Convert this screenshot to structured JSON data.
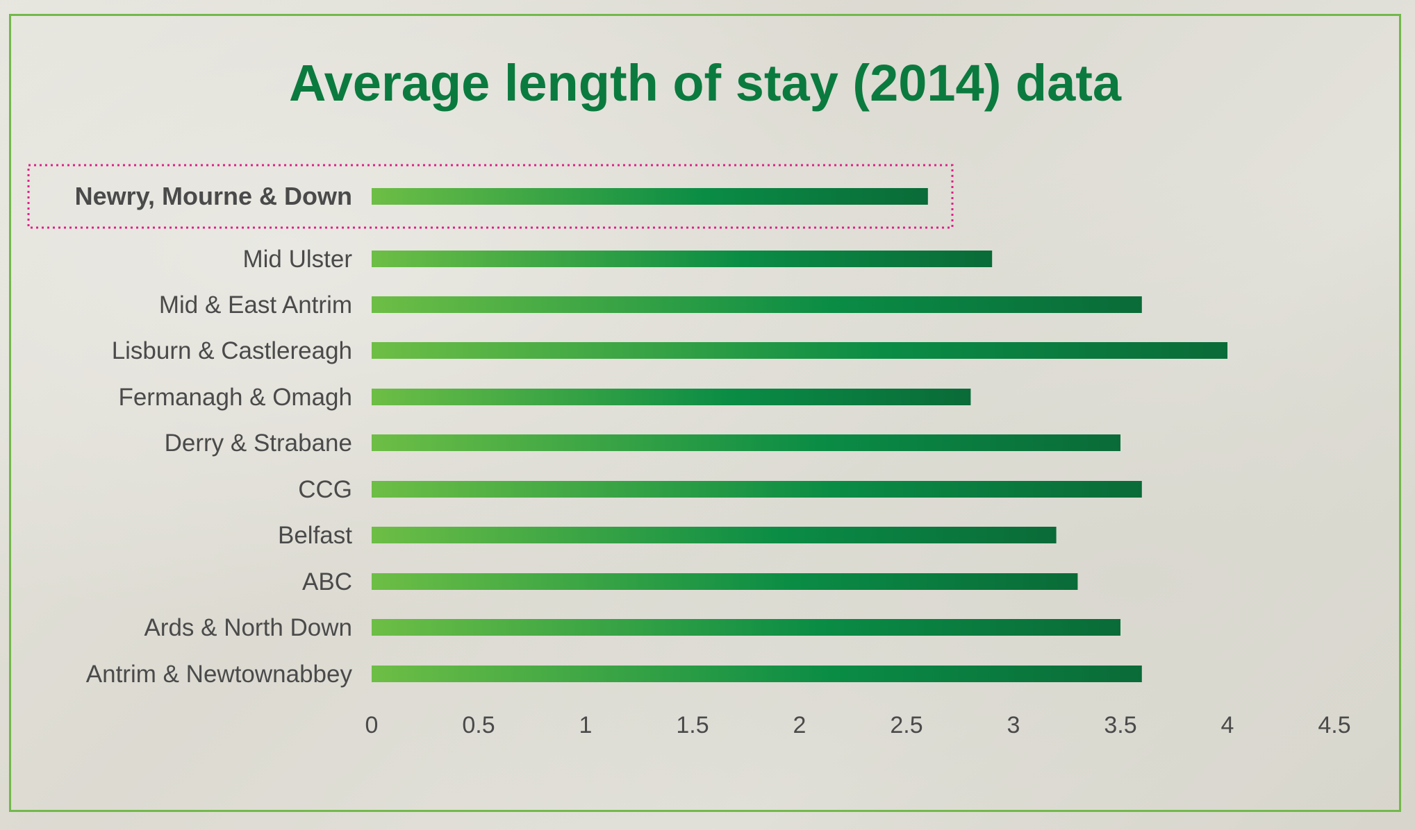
{
  "chart_data": {
    "type": "bar",
    "orientation": "horizontal",
    "title": "Average length of stay (2014) data",
    "categories": [
      "Newry, Mourne & Down",
      "Mid Ulster",
      "Mid & East Antrim",
      "Lisburn & Castlereagh",
      "Fermanagh & Omagh",
      "Derry & Strabane",
      "CCG",
      "Belfast",
      "ABC",
      "Ards & North Down",
      "Antrim & Newtownabbey"
    ],
    "values": [
      2.6,
      2.9,
      3.6,
      4.0,
      2.8,
      3.5,
      3.6,
      3.2,
      3.3,
      3.5,
      3.6
    ],
    "highlighted": "Newry, Mourne & Down",
    "xlim": [
      0,
      4.5
    ],
    "xticks": [
      "0",
      "0.5",
      "1",
      "1.5",
      "2",
      "2.5",
      "3",
      "3.5",
      "4",
      "4.5"
    ],
    "xlabel": "",
    "ylabel": "",
    "grid": false,
    "colors": {
      "bar_start": "#6dbe45",
      "bar_mid": "#0a8c45",
      "bar_end": "#0a6b38",
      "title": "#0b7a3e",
      "highlight_border": "#e0208a",
      "frame": "#72b84a",
      "label": "#4a4a4a"
    }
  }
}
